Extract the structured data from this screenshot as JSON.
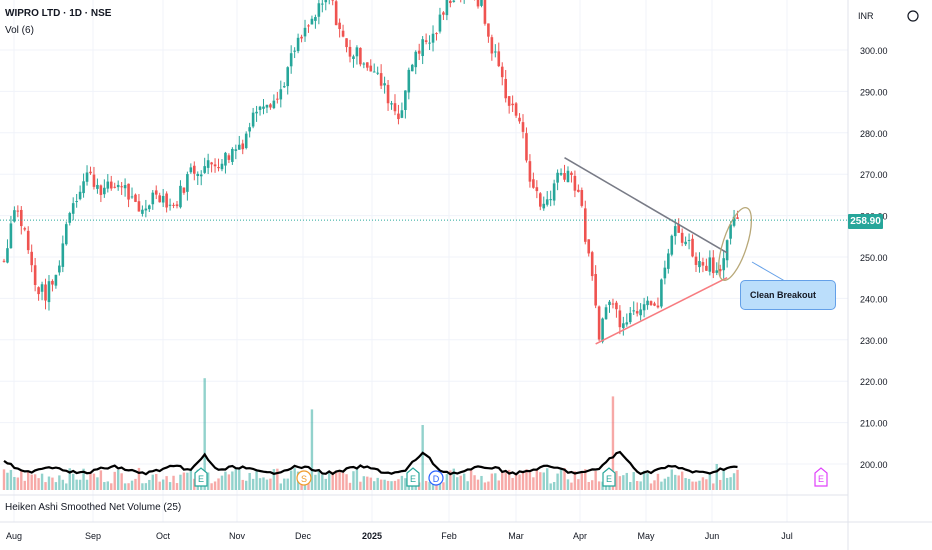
{
  "header": {
    "title": "WIPRO LTD · 1D · NSE",
    "volume_label": "Vol (6)"
  },
  "currency": "INR",
  "last_price": "258.90",
  "indicator_label": "Heiken Ashi Smoothed Net Volume (25)",
  "annotation": "Clean Breakout",
  "chart_data": {
    "type": "candlestick",
    "y_axis": {
      "ticks": [
        300,
        290,
        280,
        270,
        260,
        250,
        240,
        230,
        220,
        210,
        200
      ],
      "tick_labels": [
        "300.00",
        "290.00",
        "280.00",
        "270.00",
        "260.00",
        "250.00",
        "240.00",
        "230.00",
        "220.00",
        "210.00",
        "200.00"
      ],
      "range": [
        194,
        313
      ]
    },
    "x_axis": {
      "tick_labels": [
        "Aug",
        "Sep",
        "Oct",
        "Nov",
        "Dec",
        "2025",
        "Feb",
        "Mar",
        "Apr",
        "May",
        "Jun",
        "Jul"
      ]
    },
    "last_price": 258.9,
    "price_path": [
      [
        0,
        249
      ],
      [
        3,
        263
      ],
      [
        6,
        256
      ],
      [
        9,
        243
      ],
      [
        12,
        241
      ],
      [
        15,
        245
      ],
      [
        19,
        262
      ],
      [
        24,
        270
      ],
      [
        29,
        266
      ],
      [
        34,
        268
      ],
      [
        39,
        260
      ],
      [
        44,
        266
      ],
      [
        49,
        262
      ],
      [
        54,
        271
      ],
      [
        59,
        272
      ],
      [
        64,
        274
      ],
      [
        69,
        278
      ],
      [
        74,
        288
      ],
      [
        79,
        288
      ],
      [
        84,
        300
      ],
      [
        89,
        307
      ],
      [
        94,
        313
      ],
      [
        99,
        300
      ],
      [
        104,
        298
      ],
      [
        109,
        292
      ],
      [
        114,
        284
      ],
      [
        119,
        300
      ],
      [
        124,
        303
      ],
      [
        129,
        313
      ],
      [
        134,
        315
      ],
      [
        138,
        311
      ],
      [
        140,
        303
      ],
      [
        143,
        296
      ],
      [
        146,
        287
      ],
      [
        149,
        283
      ],
      [
        152,
        270
      ],
      [
        155,
        262
      ],
      [
        158,
        265
      ],
      [
        160,
        270
      ],
      [
        163,
        271
      ],
      [
        166,
        266
      ],
      [
        168,
        255
      ],
      [
        170,
        244
      ],
      [
        172,
        232
      ],
      [
        175,
        240
      ],
      [
        178,
        235
      ],
      [
        182,
        237
      ],
      [
        186,
        241
      ],
      [
        189,
        238
      ],
      [
        191,
        248
      ],
      [
        194,
        257
      ],
      [
        198,
        253
      ],
      [
        201,
        248
      ],
      [
        204,
        249
      ],
      [
        206,
        247
      ],
      [
        208,
        250
      ],
      [
        210,
        256
      ],
      [
        212,
        260
      ]
    ],
    "trendlines": [
      {
        "name": "resistance",
        "from": [
          162,
          274
        ],
        "to": [
          209,
          251
        ]
      },
      {
        "name": "support",
        "from": [
          171,
          229
        ],
        "to": [
          209,
          245
        ]
      }
    ],
    "volume_highlights": [
      {
        "bar": 58,
        "level": 0.86
      },
      {
        "bar": 89,
        "level": 0.62
      },
      {
        "bar": 121,
        "level": 0.5
      },
      {
        "bar": 176,
        "level": 0.72
      },
      {
        "bar": 206,
        "level": 0.2
      }
    ],
    "events": [
      {
        "label": "E",
        "color": "#26a69a"
      },
      {
        "label": "S",
        "color": "#ef9a29"
      },
      {
        "label": "E",
        "color": "#26a69a"
      },
      {
        "label": "D",
        "color": "#2962ff"
      },
      {
        "label": "E",
        "color": "#26a69a"
      },
      {
        "label": "E",
        "color": "#e040fb"
      }
    ],
    "colors": {
      "up": "#26a69a",
      "down": "#ef5350",
      "resistance": "#787b86",
      "support": "#f77c80",
      "net_volume": "#000000",
      "price_line": "#26a69a"
    },
    "grid": true
  }
}
